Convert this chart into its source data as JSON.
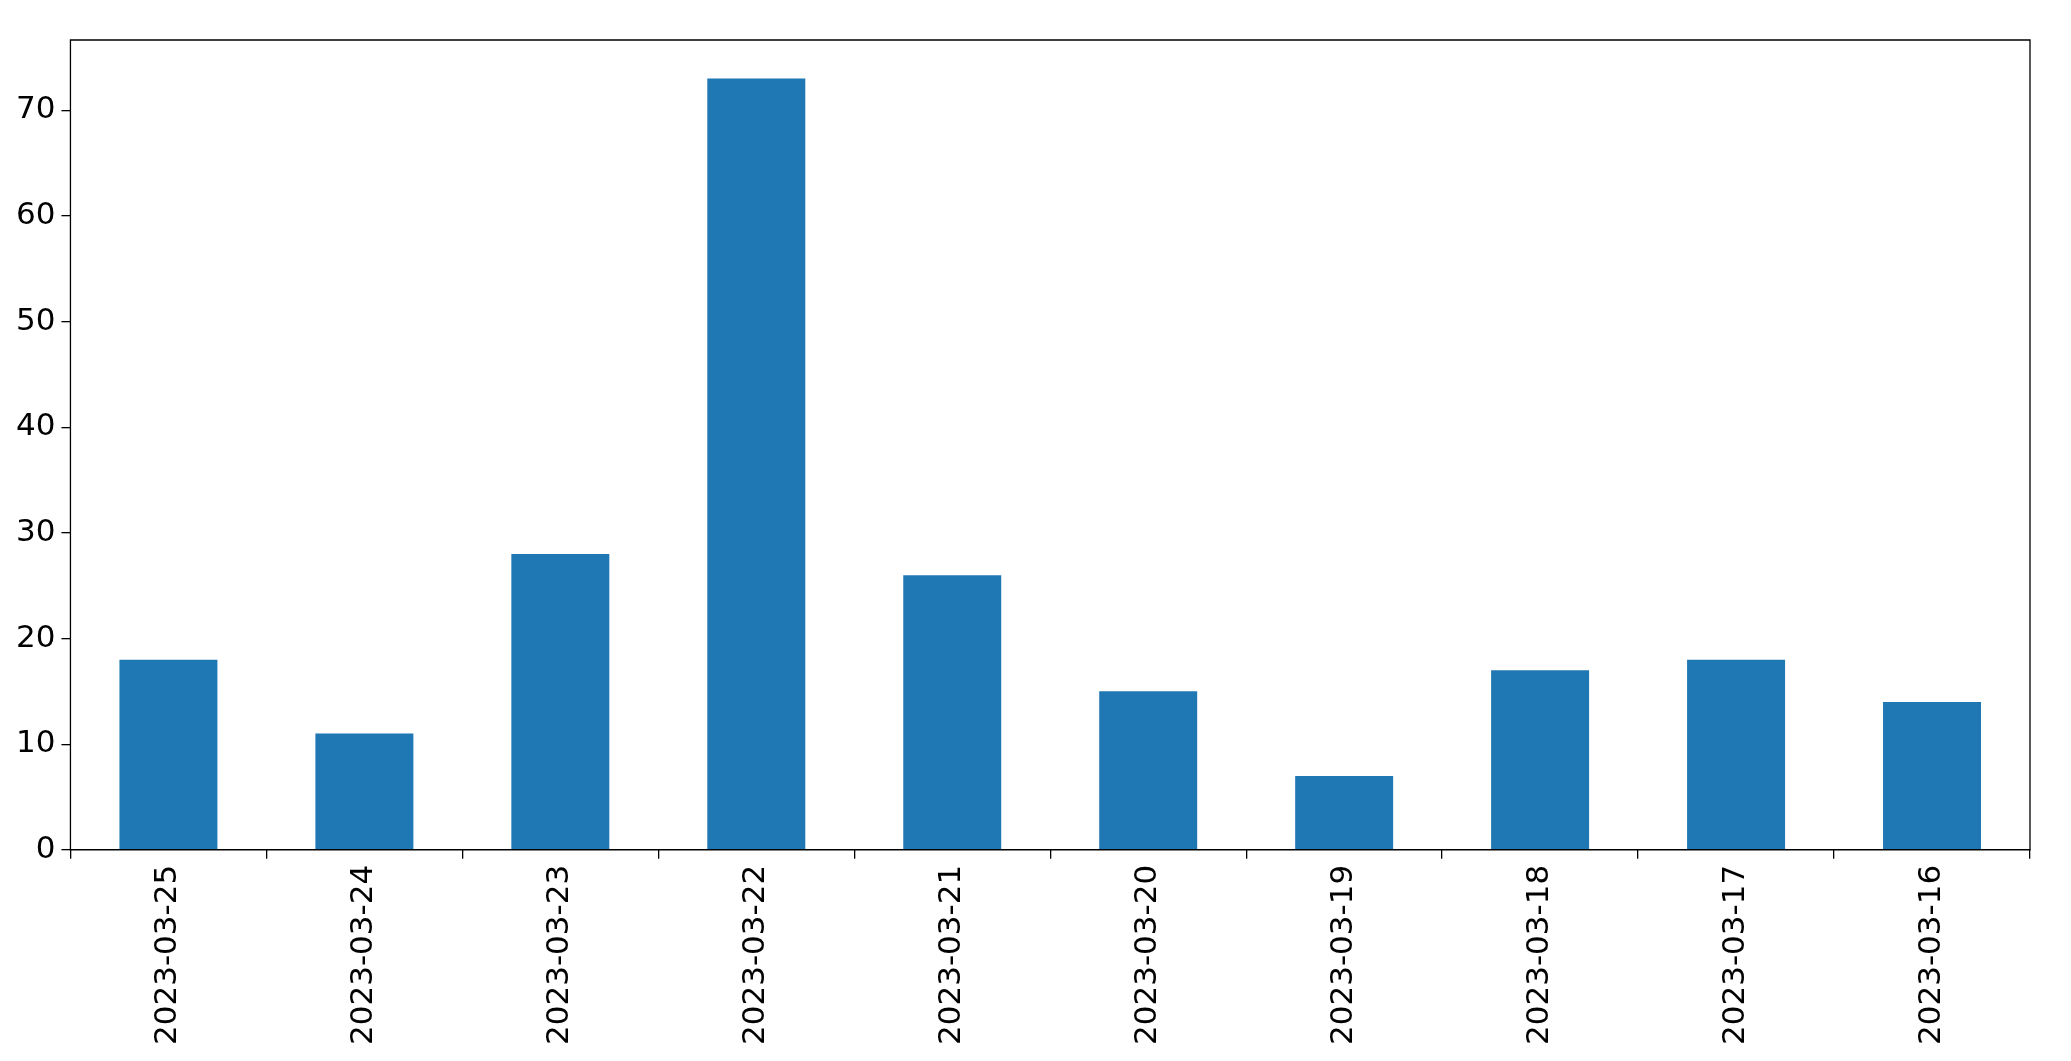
{
  "chart_data": {
    "type": "bar",
    "categories": [
      "2023-03-25",
      "2023-03-24",
      "2023-03-23",
      "2023-03-22",
      "2023-03-21",
      "2023-03-20",
      "2023-03-19",
      "2023-03-18",
      "2023-03-17",
      "2023-03-16"
    ],
    "values": [
      18,
      11,
      28,
      73,
      26,
      15,
      7,
      17,
      18,
      14
    ],
    "color": "#1f77b4",
    "ylim": [
      0,
      76.65
    ],
    "yticks": [
      0,
      10,
      20,
      30,
      40,
      50,
      60,
      70
    ],
    "grid": false,
    "legend": false
  }
}
